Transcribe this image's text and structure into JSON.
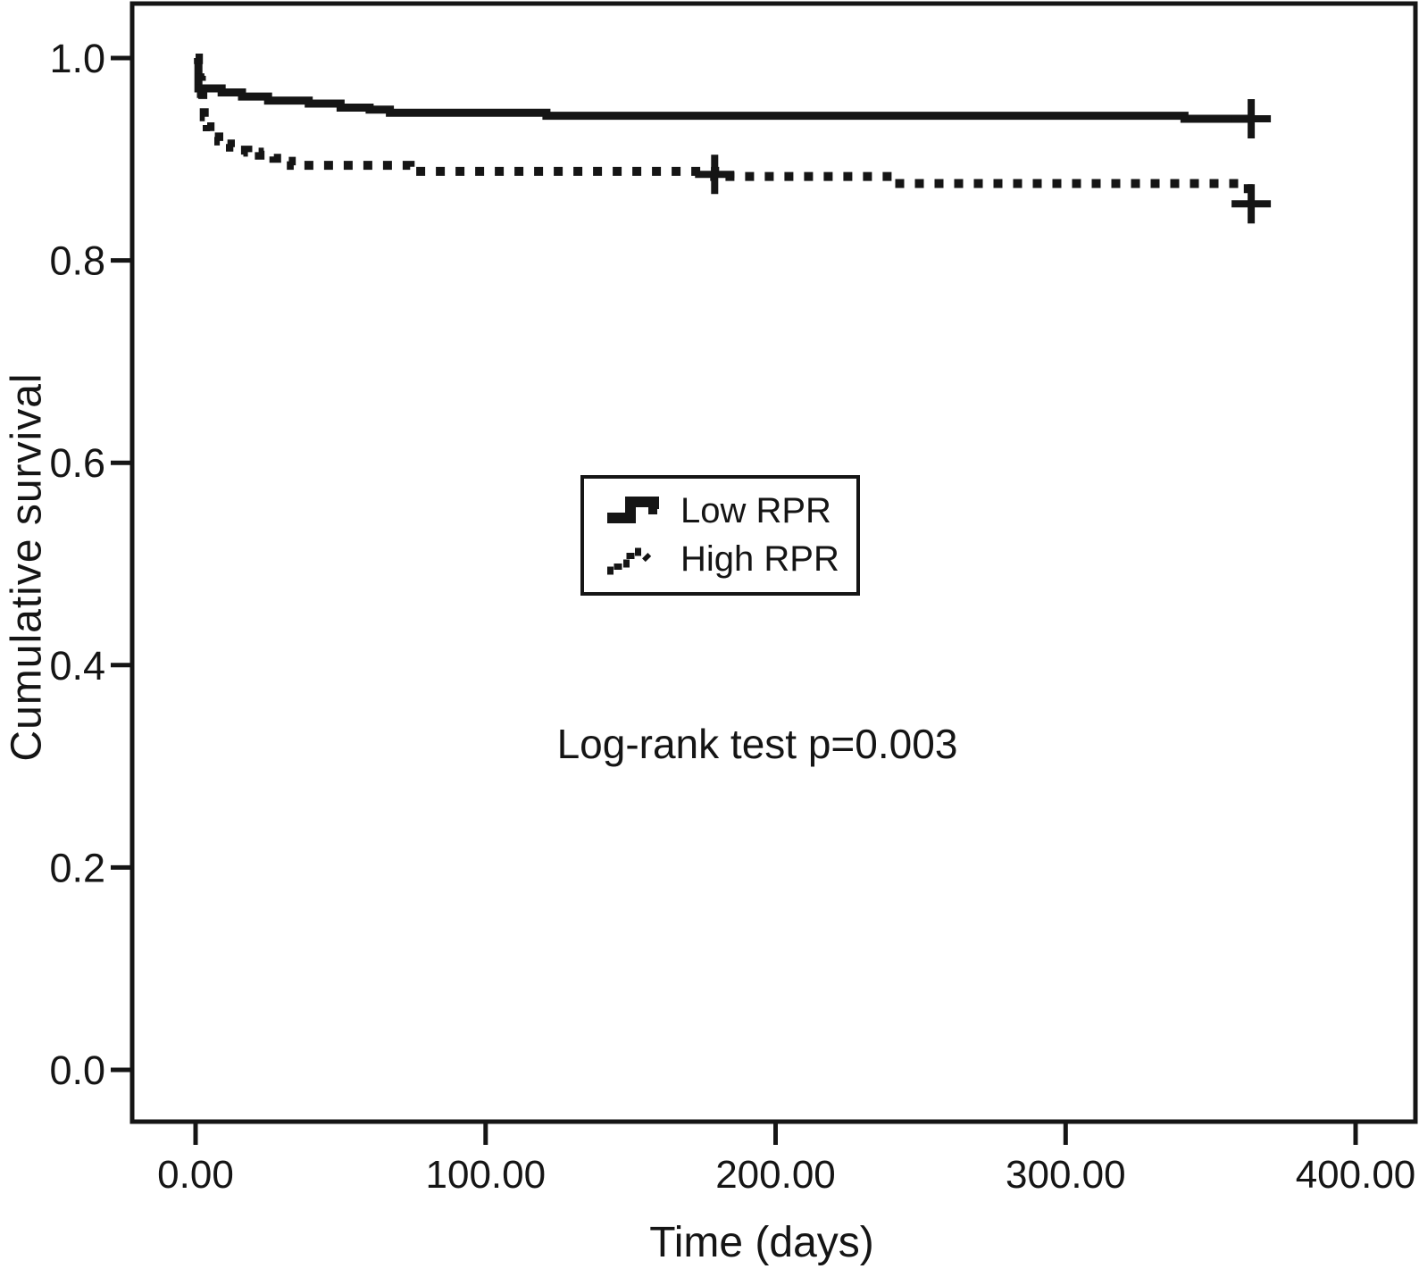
{
  "colors": {
    "ink": "#151515",
    "background": "#ffffff"
  },
  "chart_data": {
    "type": "line",
    "subtype": "kaplan_meier_step",
    "title": "",
    "xlabel": "Time (days)",
    "ylabel": "Cumulative survival",
    "xlim": [
      -22,
      421
    ],
    "ylim": [
      -0.05,
      1.054
    ],
    "grid": false,
    "legend_position": "center",
    "annotation": "Log-rank test p=0.003",
    "x_ticks": [
      {
        "value": 0,
        "label": "0.00"
      },
      {
        "value": 100,
        "label": "100.00"
      },
      {
        "value": 200,
        "label": "200.00"
      },
      {
        "value": 300,
        "label": "300.00"
      },
      {
        "value": 400,
        "label": "400.00"
      }
    ],
    "y_ticks": [
      {
        "value": 0.0,
        "label": "0.0"
      },
      {
        "value": 0.2,
        "label": "0.2"
      },
      {
        "value": 0.4,
        "label": "0.4"
      },
      {
        "value": 0.6,
        "label": "0.6"
      },
      {
        "value": 0.8,
        "label": "0.8"
      },
      {
        "value": 1.0,
        "label": "1.0"
      }
    ],
    "series": [
      {
        "name": "Low RPR",
        "line_style": "solid",
        "points": [
          [
            0,
            1.0
          ],
          [
            1,
            0.97
          ],
          [
            9,
            0.966
          ],
          [
            16,
            0.962
          ],
          [
            25,
            0.958
          ],
          [
            39,
            0.955
          ],
          [
            50,
            0.951
          ],
          [
            60,
            0.949
          ],
          [
            67,
            0.946
          ],
          [
            121,
            0.943
          ],
          [
            341,
            0.94
          ],
          [
            365,
            0.94
          ]
        ],
        "censors": [
          [
            364,
            0.94
          ]
        ]
      },
      {
        "name": "High RPR",
        "line_style": "dotted",
        "points": [
          [
            0,
            1.0
          ],
          [
            1,
            0.99
          ],
          [
            1.5,
            0.978
          ],
          [
            2,
            0.965
          ],
          [
            2.5,
            0.953
          ],
          [
            3,
            0.942
          ],
          [
            4,
            0.932
          ],
          [
            5,
            0.926
          ],
          [
            6,
            0.922
          ],
          [
            8,
            0.918
          ],
          [
            10,
            0.915
          ],
          [
            12,
            0.912
          ],
          [
            15,
            0.909
          ],
          [
            18,
            0.907
          ],
          [
            22,
            0.904
          ],
          [
            27,
            0.901
          ],
          [
            31,
            0.898
          ],
          [
            33,
            0.894
          ],
          [
            74,
            0.888
          ],
          [
            179,
            0.883
          ],
          [
            241,
            0.876
          ],
          [
            363,
            0.856
          ],
          [
            365,
            0.856
          ]
        ],
        "censors": [
          [
            179,
            0.885
          ],
          [
            364,
            0.856
          ]
        ]
      }
    ]
  }
}
